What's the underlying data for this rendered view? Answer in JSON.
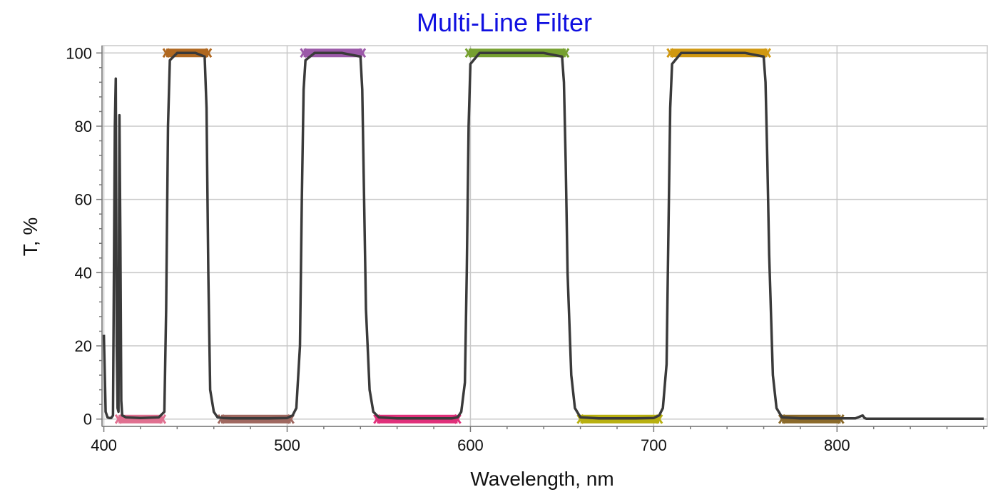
{
  "chart_data": {
    "type": "line",
    "title": "Multi-Line Filter",
    "xlabel": "Wavelength, nm",
    "ylabel": "T, %",
    "xlim": [
      399,
      882
    ],
    "ylim": [
      -2,
      102
    ],
    "xticks": [
      400,
      500,
      600,
      700,
      800
    ],
    "yticks": [
      0,
      20,
      40,
      60,
      80,
      100
    ],
    "grid": true,
    "legend": "none",
    "colors": {
      "title": "#1010e0",
      "curve": "#3a3a3a",
      "grid": "#c8c8c8",
      "axis": "#777777"
    },
    "series": [
      {
        "x": [
          400,
          401,
          402,
          403,
          404,
          405,
          406,
          406.5,
          407,
          407.5,
          408,
          408.5,
          409,
          409.5,
          410,
          412,
          420,
          430,
          433,
          434,
          435,
          436,
          440,
          450,
          455,
          456,
          457,
          458,
          460,
          462,
          465,
          470,
          480,
          490,
          500,
          503,
          505,
          507,
          508,
          509,
          510,
          515,
          530,
          540,
          541,
          542,
          543,
          545,
          547,
          550,
          560,
          570,
          580,
          590,
          593,
          595,
          597,
          598,
          599,
          600,
          605,
          620,
          640,
          650,
          651,
          652,
          653,
          655,
          657,
          660,
          670,
          680,
          690,
          700,
          703,
          705,
          707,
          708,
          709,
          710,
          715,
          730,
          750,
          760,
          761,
          762,
          763,
          765,
          767,
          770,
          780,
          790,
          800,
          810,
          814,
          815,
          816,
          820,
          840,
          860,
          880
        ],
        "y": [
          23,
          2,
          0.5,
          0.3,
          0.3,
          1,
          80,
          93,
          20,
          3,
          2,
          83,
          50,
          5,
          1,
          0.5,
          0.3,
          0.5,
          2,
          30,
          80,
          98,
          100,
          100,
          99,
          85,
          40,
          8,
          2,
          0.5,
          0.3,
          0.2,
          0.2,
          0.2,
          0.3,
          1,
          3,
          20,
          60,
          90,
          98,
          100,
          100,
          99,
          90,
          60,
          30,
          8,
          2,
          0.5,
          0.2,
          0.2,
          0.2,
          0.2,
          0.5,
          2,
          10,
          40,
          80,
          97,
          100,
          100,
          100,
          99,
          92,
          70,
          40,
          12,
          3,
          0.5,
          0.2,
          0.2,
          0.2,
          0.3,
          1,
          3,
          15,
          50,
          85,
          97,
          100,
          100,
          100,
          99,
          92,
          70,
          45,
          12,
          3,
          0.5,
          0.2,
          0.2,
          0.2,
          0.2,
          1,
          0.3,
          0.1,
          0.1,
          0.1,
          0.1,
          0.1
        ]
      }
    ],
    "bands": [
      {
        "from": 408,
        "to": 432,
        "y": 0,
        "color": "#e07090"
      },
      {
        "from": 434,
        "to": 457,
        "y": 100,
        "color": "#b06820"
      },
      {
        "from": 464,
        "to": 502,
        "y": 0,
        "color": "#a06860"
      },
      {
        "from": 509,
        "to": 541,
        "y": 100,
        "color": "#9b59a8"
      },
      {
        "from": 549,
        "to": 593,
        "y": 0,
        "color": "#e0307a"
      },
      {
        "from": 599,
        "to": 652,
        "y": 100,
        "color": "#76a030"
      },
      {
        "from": 660,
        "to": 703,
        "y": 0,
        "color": "#b8b010"
      },
      {
        "from": 709,
        "to": 762,
        "y": 100,
        "color": "#d09810"
      },
      {
        "from": 770,
        "to": 802,
        "y": 0,
        "color": "#8b6a2a"
      }
    ]
  }
}
